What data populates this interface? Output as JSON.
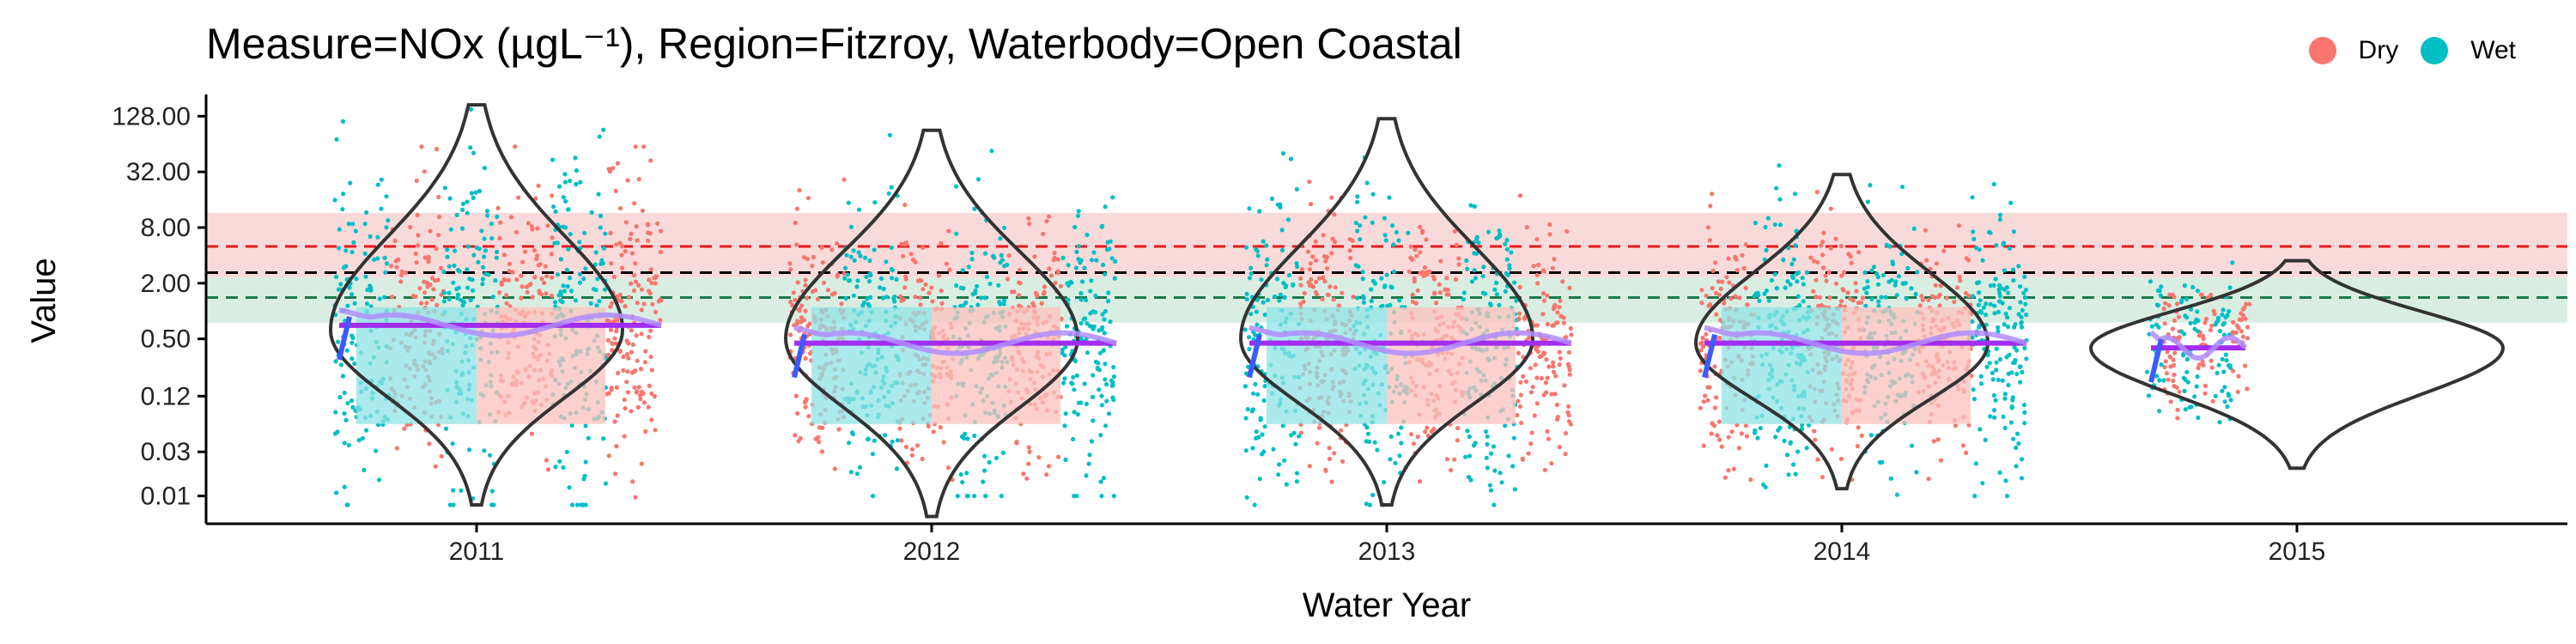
{
  "chart_data": {
    "type": "violin-scatter",
    "title": "Measure=NOx (µgL⁻¹), Region=Fitzroy, Waterbody=Open Coastal",
    "xlabel": "Water Year",
    "ylabel": "Value",
    "y_scale": "log2",
    "ylim": [
      0.005,
      220
    ],
    "y_ticks": [
      0.01,
      0.03,
      0.12,
      0.5,
      2,
      8,
      32,
      128
    ],
    "y_tick_labels": [
      "0.01",
      "0.03",
      "0.12",
      "0.50",
      "2.00",
      "8.00",
      "32.00",
      "128.00"
    ],
    "categories": [
      "2011",
      "2012",
      "2013",
      "2014",
      "2015"
    ],
    "legend": {
      "position": "top-right",
      "entries": [
        {
          "label": "Dry",
          "color": "#F8766D"
        },
        {
          "label": "Wet",
          "color": "#00BFC4"
        }
      ]
    },
    "reference_lines": [
      {
        "value": 5.0,
        "color": "#e41a1c",
        "style": "dashed",
        "band": [
          2.3,
          11.5
        ],
        "band_color": "#f4b6b6"
      },
      {
        "value": 2.6,
        "color": "#000000",
        "style": "dashed"
      },
      {
        "value": 1.4,
        "color": "#1b7a4a",
        "style": "dashed",
        "band": [
          0.75,
          2.3
        ],
        "band_color": "#b6dcc8"
      }
    ],
    "groups": [
      {
        "year": "2011",
        "wet": {
          "min": 0.008,
          "max": 180,
          "median": 0.7
        },
        "dry": {
          "min": 0.008,
          "max": 60,
          "median": 0.7
        },
        "violin_peak": 0.62,
        "violin_range": [
          0.008,
          170
        ]
      },
      {
        "year": "2012",
        "wet": {
          "min": 0.01,
          "max": 80,
          "median": 0.45
        },
        "dry": {
          "min": 0.015,
          "max": 30,
          "median": 0.45
        },
        "violin_peak": 0.5,
        "violin_range": [
          0.006,
          90
        ]
      },
      {
        "year": "2013",
        "wet": {
          "min": 0.008,
          "max": 110,
          "median": 0.45
        },
        "dry": {
          "min": 0.01,
          "max": 25,
          "median": 0.45
        },
        "violin_peak": 0.5,
        "violin_range": [
          0.008,
          120
        ]
      },
      {
        "year": "2014",
        "wet": {
          "min": 0.01,
          "max": 40,
          "median": 0.45
        },
        "dry": {
          "min": 0.015,
          "max": 20,
          "median": 0.45
        },
        "violin_peak": 0.45,
        "violin_range": [
          0.012,
          30
        ]
      },
      {
        "year": "2015",
        "wet": {
          "min": 0.03,
          "max": 3.5,
          "median": 0.4
        },
        "dry": {
          "min": 0.03,
          "max": 1.5,
          "median": 0.4
        },
        "violin_peak": 0.4,
        "violin_range": [
          0.02,
          3.5
        ]
      }
    ]
  }
}
